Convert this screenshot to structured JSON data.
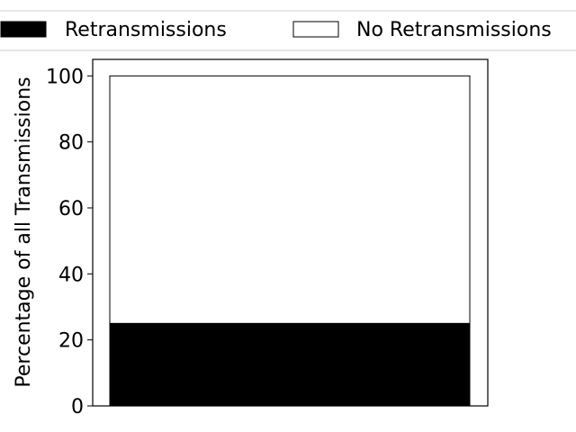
{
  "chart_data": {
    "type": "bar",
    "stacked": true,
    "categories": [
      ""
    ],
    "series": [
      {
        "name": "Retransmissions",
        "values": [
          25
        ],
        "color": "#000000"
      },
      {
        "name": "No Retransmissions",
        "values": [
          75
        ],
        "color": "#ffffff"
      }
    ],
    "title": "",
    "xlabel": "",
    "ylabel": "Percentage of all Transmissions",
    "ylim": [
      0,
      105
    ],
    "yticks": [
      0,
      20,
      40,
      60,
      80,
      100
    ],
    "grid": false,
    "legend_placement": "top"
  }
}
